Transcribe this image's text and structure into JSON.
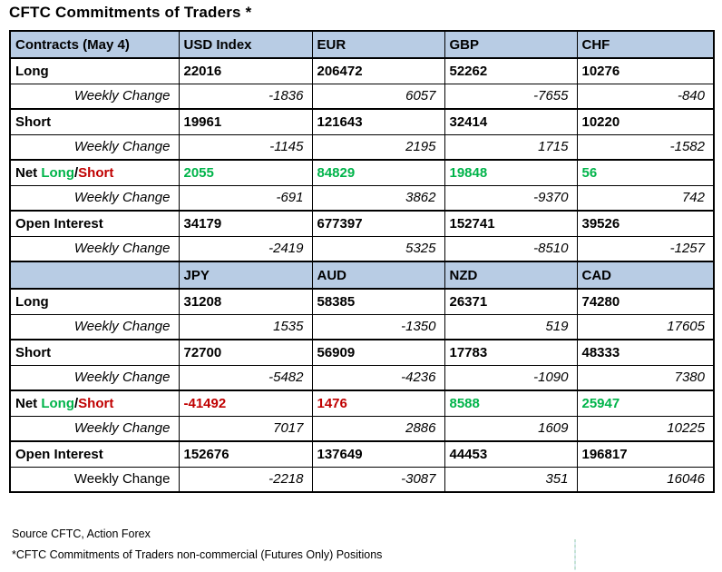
{
  "title": "CFTC Commitments of Traders *",
  "colors": {
    "header_bg": "#b8cce4",
    "positive": "#00b44a",
    "negative": "#c00000",
    "border": "#000000"
  },
  "net_label_parts": {
    "prefix": "Net ",
    "long": "Long",
    "slash": "/",
    "short": "Short"
  },
  "chart_data": {
    "type": "table",
    "title": "CFTC Commitments of Traders *",
    "sections": [
      {
        "header": [
          "Contracts (May 4)",
          "USD Index",
          "EUR",
          "GBP",
          "CHF"
        ],
        "rows": [
          {
            "label": "Long",
            "style": "main",
            "values": [
              "22016",
              "206472",
              "52262",
              "10276"
            ]
          },
          {
            "label": "Weekly Change",
            "style": "change",
            "values": [
              "-1836",
              "6057",
              "-7655",
              "-840"
            ]
          },
          {
            "label": "Short",
            "style": "main",
            "values": [
              "19961",
              "121643",
              "32414",
              "10220"
            ]
          },
          {
            "label": "Weekly Change",
            "style": "change",
            "values": [
              "-1145",
              "2195",
              "1715",
              "-1582"
            ]
          },
          {
            "label": "Net Long/Short",
            "style": "net",
            "values": [
              "2055",
              "84829",
              "19848",
              "56"
            ],
            "value_colors": [
              "positive",
              "positive",
              "positive",
              "positive"
            ]
          },
          {
            "label": "Weekly Change",
            "style": "change",
            "values": [
              "-691",
              "3862",
              "-9370",
              "742"
            ]
          },
          {
            "label": "Open Interest",
            "style": "main",
            "values": [
              "34179",
              "677397",
              "152741",
              "39526"
            ]
          },
          {
            "label": "Weekly Change",
            "style": "change",
            "values": [
              "-2419",
              "5325",
              "-8510",
              "-1257"
            ]
          }
        ]
      },
      {
        "header": [
          "",
          "JPY",
          "AUD",
          "NZD",
          "CAD"
        ],
        "rows": [
          {
            "label": "Long",
            "style": "main",
            "values": [
              "31208",
              "58385",
              "26371",
              "74280"
            ]
          },
          {
            "label": "Weekly Change",
            "style": "change",
            "values": [
              "1535",
              "-1350",
              "519",
              "17605"
            ]
          },
          {
            "label": "Short",
            "style": "main",
            "values": [
              "72700",
              "56909",
              "17783",
              "48333"
            ]
          },
          {
            "label": "Weekly Change",
            "style": "change",
            "values": [
              "-5482",
              "-4236",
              "-1090",
              "7380"
            ]
          },
          {
            "label": "Net Long/Short",
            "style": "net",
            "values": [
              "-41492",
              "1476",
              "8588",
              "25947"
            ],
            "value_colors": [
              "negative",
              "negative",
              "positive",
              "positive"
            ]
          },
          {
            "label": "Weekly Change",
            "style": "change",
            "values": [
              "7017",
              "2886",
              "1609",
              "10225"
            ]
          },
          {
            "label": "Open Interest",
            "style": "main",
            "values": [
              "152676",
              "137649",
              "44453",
              "196817"
            ]
          },
          {
            "label": "Weekly Change",
            "style": "change-upright",
            "values": [
              "-2218",
              "-3087",
              "351",
              "16046"
            ]
          }
        ]
      }
    ]
  },
  "footer": {
    "source": "Source CFTC, Action Forex",
    "note": "*CFTC Commitments of Traders non-commercial (Futures Only) Positions"
  }
}
